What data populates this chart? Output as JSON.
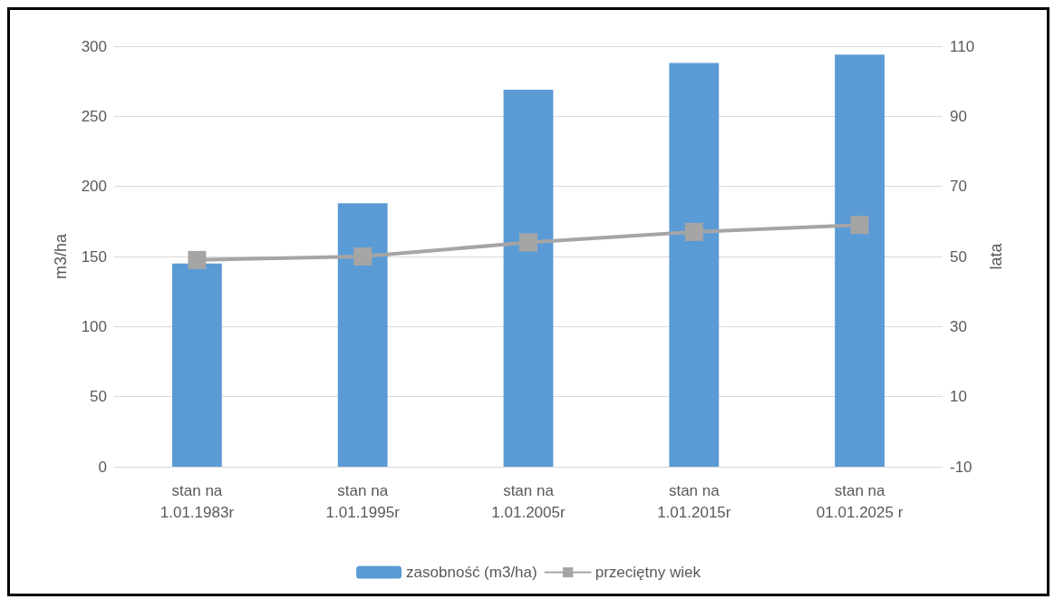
{
  "chart_data": {
    "type": "bar",
    "ylabel": "m3/ha",
    "y2label": "lata",
    "categories": [
      "stan na\n1.01.1983r",
      "stan na\n1.01.1995r",
      "stan na\n1.01.2005r",
      "stan na\n1.01.2015r",
      "stan na\n01.01.2025 r"
    ],
    "series": [
      {
        "name": "zasobność (m3/ha)",
        "color": "#5b9bd5",
        "values": [
          145,
          188,
          269,
          288,
          294
        ]
      },
      {
        "name": "przeciętny wiek",
        "type": "line",
        "axis": "y2",
        "color": "#a5a5a5",
        "values": [
          49,
          50,
          54,
          57,
          59
        ]
      }
    ],
    "ylim": [
      0,
      300
    ],
    "yticks": [
      0,
      50,
      100,
      150,
      200,
      250,
      300
    ],
    "y2lim": [
      -10,
      110
    ],
    "y2ticks": [
      -10,
      10,
      30,
      50,
      70,
      90,
      110
    ],
    "grid": "y",
    "legend": "bottom",
    "marker": "square",
    "line_style": "solid"
  }
}
